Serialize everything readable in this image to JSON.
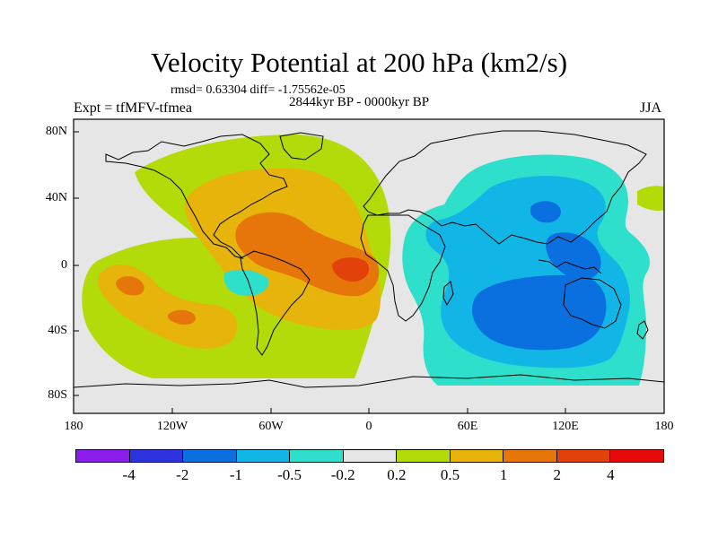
{
  "title": "Velocity Potential at 200 hPa (km2/s)",
  "stats": "rmsd= 0.63304 diff= -1.75562e-05",
  "period": "2844kyr BP - 0000kyr BP",
  "left_label": "Expt = tfMFV-tfmea",
  "right_label": "JJA",
  "lat_ticks": [
    "80N",
    "40N",
    "0",
    "40S",
    "80S"
  ],
  "lon_ticks": [
    "180",
    "120W",
    "60W",
    "0",
    "60E",
    "120E",
    "180"
  ],
  "colorbar": {
    "colors": [
      "#8c1eeb",
      "#2e33e0",
      "#0a6fdf",
      "#12b6e6",
      "#2ee0cb",
      "#e6e6e6",
      "#b3db0a",
      "#e6b40a",
      "#e6760a",
      "#e2410a",
      "#e60a0a"
    ],
    "labels": [
      "-4",
      "-2",
      "-1",
      "-0.5",
      "-0.2",
      "0.2",
      "0.5",
      "1",
      "2",
      "4"
    ]
  },
  "colors": {
    "background_fill": "#e6e6e6",
    "pos_02": "#b3db0a",
    "pos_05": "#e6b40a",
    "pos_1": "#e6760a",
    "pos_2": "#e2410a",
    "neg_02": "#2ee0cb",
    "neg_05": "#12b6e6",
    "neg_1": "#0a6fdf"
  }
}
